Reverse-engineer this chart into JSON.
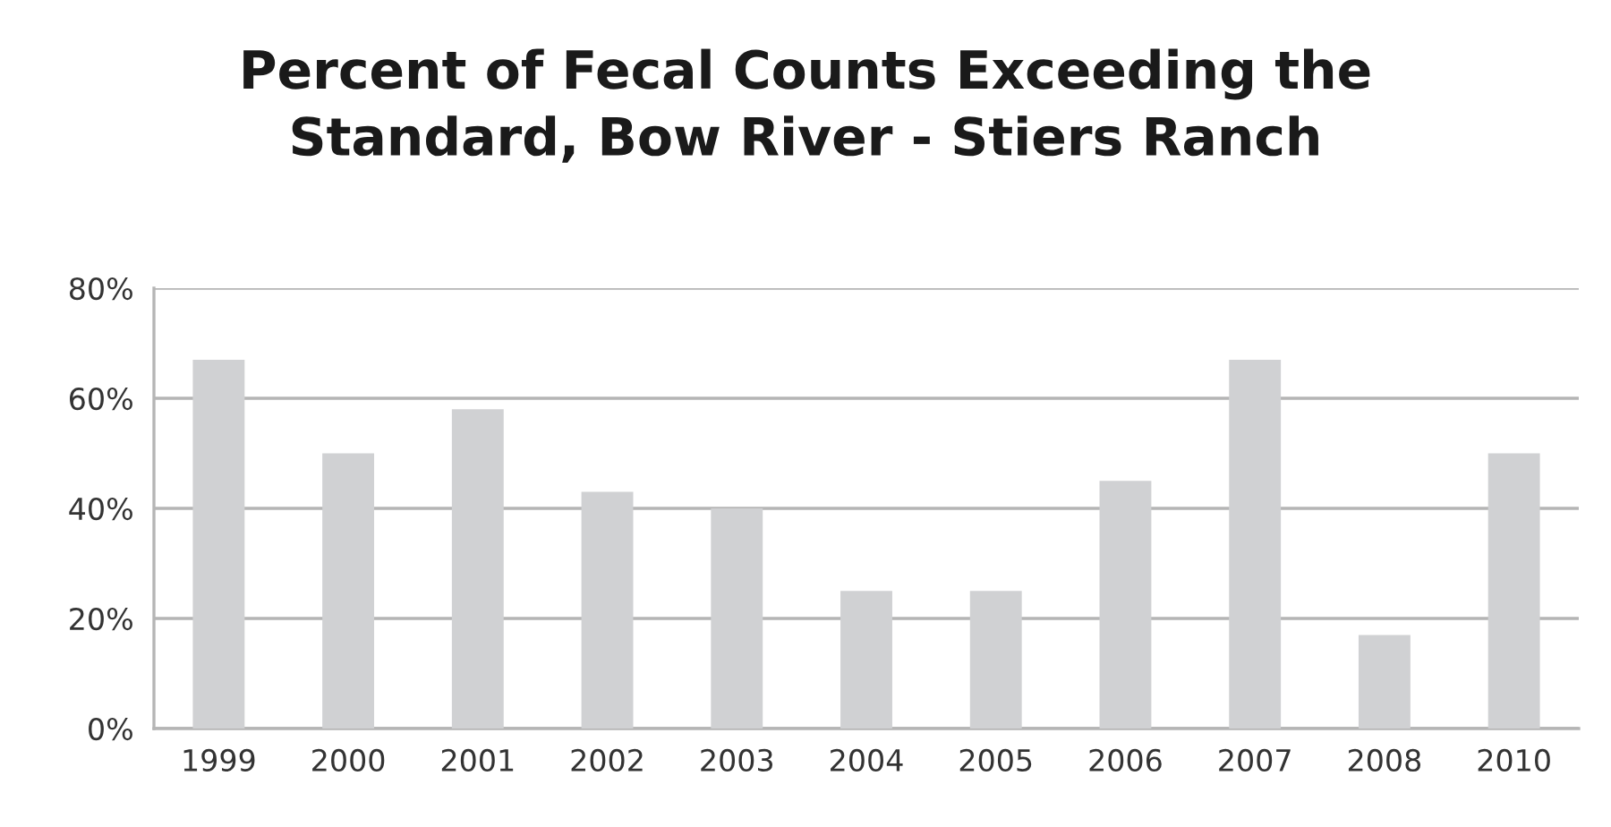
{
  "chart_data": {
    "type": "bar",
    "title": "Percent of Fecal Counts Exceeding the\nStandard, Bow River - Stiers Ranch",
    "categories": [
      "1999",
      "2000",
      "2001",
      "2002",
      "2003",
      "2004",
      "2005",
      "2006",
      "2007",
      "2008",
      "2010"
    ],
    "values": [
      67,
      50,
      58,
      43,
      40,
      25,
      25,
      45,
      67,
      17,
      50
    ],
    "color": "#d0d1d3",
    "ylim": [
      0,
      80
    ],
    "yticks": [
      {
        "value": 0,
        "label": "0%"
      },
      {
        "value": 20,
        "label": "20%"
      },
      {
        "value": 40,
        "label": "40%"
      },
      {
        "value": 60,
        "label": "60%"
      },
      {
        "value": 80,
        "label": "80%"
      }
    ],
    "grid": "y",
    "legend": false
  }
}
